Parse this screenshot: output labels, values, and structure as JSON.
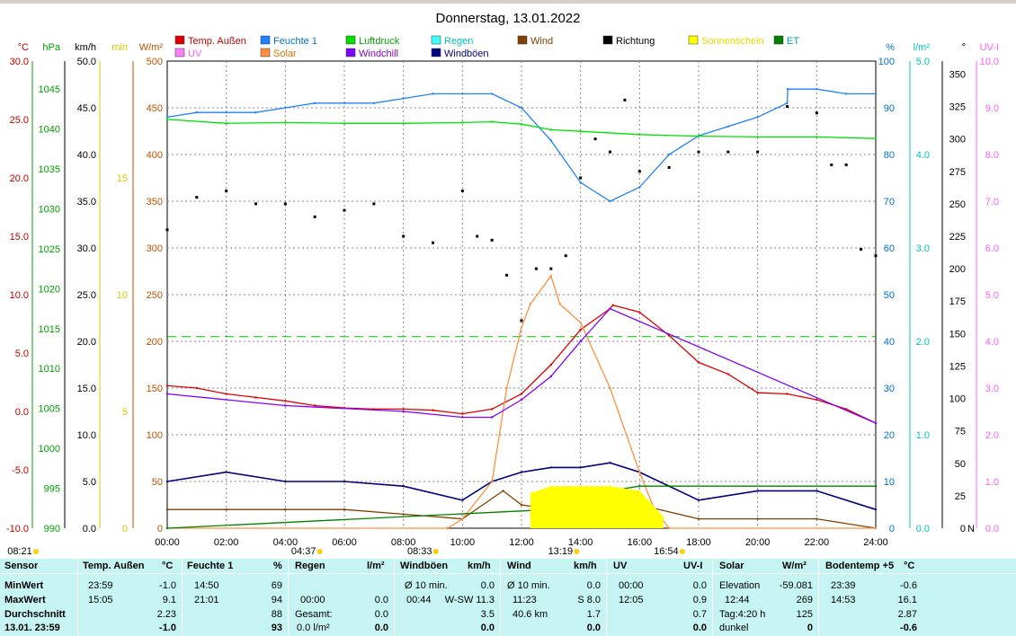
{
  "title": "Donnerstag, 13.01.2022",
  "axes": {
    "temp": {
      "unit": "°C",
      "ticks": [
        "30.0",
        "25.0",
        "20.0",
        "15.0",
        "10.0",
        "5.0",
        "0.0",
        "-5.0",
        "-10.0"
      ],
      "color": "#c00000"
    },
    "hpa": {
      "unit": "hPa",
      "ticks": [
        "1045",
        "1040",
        "1035",
        "1030",
        "1025",
        "1020",
        "1015",
        "1010",
        "1005",
        "1000",
        "995",
        "990"
      ],
      "color": "#00a000"
    },
    "kmh": {
      "unit": "km/h",
      "ticks": [
        "50.0",
        "45.0",
        "40.0",
        "35.0",
        "30.0",
        "25.0",
        "20.0",
        "15.0",
        "10.0",
        "5.0",
        "0.0"
      ],
      "color": "#000000"
    },
    "min": {
      "unit": "min",
      "ticks": [
        "15",
        "10",
        "5",
        "0"
      ],
      "color": "#d8c800"
    },
    "wm2": {
      "unit": "W/m²",
      "ticks": [
        "500",
        "450",
        "400",
        "350",
        "300",
        "250",
        "200",
        "150",
        "100",
        "50",
        "0"
      ],
      "color": "#c05000"
    },
    "pct": {
      "unit": "%",
      "ticks": [
        "100",
        "90",
        "80",
        "70",
        "60",
        "50",
        "40",
        "30",
        "20",
        "10",
        "0"
      ],
      "color": "#0070d0"
    },
    "lm2": {
      "unit": "l/m²",
      "ticks": [
        "5.0",
        "4.0",
        "3.0",
        "2.0",
        "1.0",
        "0.0"
      ],
      "color": "#00c0c0"
    },
    "deg": {
      "unit": "°",
      "ticks": [
        "350",
        "325",
        "300",
        "275",
        "250",
        "225",
        "200",
        "175",
        "150",
        "125",
        "100",
        "75",
        "50",
        "25",
        "0"
      ],
      "color": "#000000"
    },
    "uvi": {
      "unit": "UV-I",
      "ticks": [
        "10.0",
        "9.0",
        "8.0",
        "7.0",
        "6.0",
        "5.0",
        "4.0",
        "3.0",
        "2.0",
        "1.0",
        "0.0"
      ],
      "color": "#ff60ff"
    }
  },
  "north_label": "N",
  "legend": [
    {
      "label": "Temp. Außen",
      "color": "#e00000",
      "textcolor": "#c00000"
    },
    {
      "label": "Feuchte 1",
      "color": "#2080ff",
      "textcolor": "#0070d0"
    },
    {
      "label": "Luftdruck",
      "color": "#00e000",
      "textcolor": "#00a000"
    },
    {
      "label": "Regen",
      "color": "#40ffff",
      "textcolor": "#00c0c0"
    },
    {
      "label": "Wind",
      "color": "#804000",
      "textcolor": "#804000"
    },
    {
      "label": "Richtung",
      "color": "#000000",
      "textcolor": "#000000"
    },
    {
      "label": "Sonnenschein",
      "color": "#ffff00",
      "textcolor": "#e0e000"
    },
    {
      "label": "ET",
      "color": "#008000",
      "textcolor": "#00a0a0"
    },
    {
      "label": "UV",
      "color": "#ff80ff",
      "textcolor": "#ff60ff"
    },
    {
      "label": "Solar",
      "color": "#ff9040",
      "textcolor": "#e07000"
    },
    {
      "label": "Windchill",
      "color": "#8000ff",
      "textcolor": "#8000c0"
    },
    {
      "label": "Windböen",
      "color": "#000080",
      "textcolor": "#000080"
    }
  ],
  "chart_data": {
    "type": "line",
    "title": "Donnerstag, 13.01.2022",
    "x_ticks": [
      "00:00",
      "02:00",
      "04:00",
      "06:00",
      "08:00",
      "10:00",
      "12:00",
      "14:00",
      "16:00",
      "18:00",
      "20:00",
      "22:00",
      "24:00"
    ],
    "xlim_hours": [
      0,
      24
    ],
    "grid": true,
    "sun_markers": [
      {
        "label": "08:21",
        "hour": -1
      },
      {
        "label": "04:37",
        "hour": 4.62
      },
      {
        "label": "08:33",
        "hour": 8.55
      },
      {
        "label": "13:19",
        "hour": 13.32
      },
      {
        "label": "16:54",
        "hour": 16.9
      }
    ],
    "series": [
      {
        "name": "Temp. Außen",
        "unit": "°C",
        "points": [
          [
            0,
            2.2
          ],
          [
            1,
            2.0
          ],
          [
            2,
            1.5
          ],
          [
            3,
            1.2
          ],
          [
            4,
            0.9
          ],
          [
            5,
            0.5
          ],
          [
            6,
            0.3
          ],
          [
            7,
            0.2
          ],
          [
            8,
            0.2
          ],
          [
            9,
            0.1
          ],
          [
            10,
            -0.2
          ],
          [
            11,
            0.2
          ],
          [
            12,
            1.5
          ],
          [
            13,
            4.0
          ],
          [
            14,
            7.0
          ],
          [
            15,
            8.8
          ],
          [
            15.1,
            9.1
          ],
          [
            16,
            8.5
          ],
          [
            17,
            6.5
          ],
          [
            18,
            4.2
          ],
          [
            19,
            3.2
          ],
          [
            20,
            1.6
          ],
          [
            21,
            1.5
          ],
          [
            22,
            1.0
          ],
          [
            23,
            0.2
          ],
          [
            24,
            -1.0
          ]
        ]
      },
      {
        "name": "Feuchte 1",
        "unit": "%",
        "points": [
          [
            0,
            88
          ],
          [
            1,
            89
          ],
          [
            2,
            89
          ],
          [
            3,
            89
          ],
          [
            4,
            90
          ],
          [
            5,
            91
          ],
          [
            6,
            91
          ],
          [
            7,
            91
          ],
          [
            8,
            92
          ],
          [
            9,
            93
          ],
          [
            10,
            93
          ],
          [
            11,
            93
          ],
          [
            12,
            90
          ],
          [
            13,
            83
          ],
          [
            14,
            74
          ],
          [
            15,
            70
          ],
          [
            16,
            73
          ],
          [
            17,
            80
          ],
          [
            18,
            84
          ],
          [
            19,
            86
          ],
          [
            20,
            88
          ],
          [
            21,
            91
          ],
          [
            21.02,
            94
          ],
          [
            22,
            94
          ],
          [
            23,
            93
          ],
          [
            24,
            93
          ]
        ]
      },
      {
        "name": "Luftdruck",
        "unit": "hPa",
        "points": [
          [
            0,
            1041.2
          ],
          [
            2,
            1040.7
          ],
          [
            4,
            1040.8
          ],
          [
            6,
            1040.7
          ],
          [
            8,
            1040.7
          ],
          [
            10,
            1040.8
          ],
          [
            11,
            1040.9
          ],
          [
            12,
            1040.6
          ],
          [
            13,
            1039.9
          ],
          [
            14,
            1039.7
          ],
          [
            16,
            1039.3
          ],
          [
            18,
            1039.1
          ],
          [
            20,
            1039.0
          ],
          [
            22,
            1039.0
          ],
          [
            24,
            1038.8
          ]
        ]
      },
      {
        "name": "Wind",
        "unit": "km/h",
        "points": [
          [
            0,
            2.0
          ],
          [
            2,
            2.0
          ],
          [
            4,
            2.0
          ],
          [
            6,
            2.0
          ],
          [
            8,
            1.5
          ],
          [
            10,
            1.0
          ],
          [
            11.38,
            4.0
          ],
          [
            12,
            2.5
          ],
          [
            13,
            2.0
          ],
          [
            14,
            2.5
          ],
          [
            15,
            3.0
          ],
          [
            16,
            2.5
          ],
          [
            18,
            1.0
          ],
          [
            20,
            1.0
          ],
          [
            22,
            1.0
          ],
          [
            24,
            0.0
          ]
        ]
      },
      {
        "name": "Windböen",
        "unit": "km/h",
        "points": [
          [
            0,
            5.0
          ],
          [
            2,
            6.0
          ],
          [
            4,
            5.0
          ],
          [
            6,
            5.0
          ],
          [
            8,
            4.5
          ],
          [
            10,
            3.0
          ],
          [
            11,
            5.0
          ],
          [
            12,
            6.0
          ],
          [
            13,
            6.5
          ],
          [
            14,
            6.5
          ],
          [
            15,
            7.0
          ],
          [
            16,
            6.0
          ],
          [
            18,
            3.0
          ],
          [
            20,
            4.0
          ],
          [
            22,
            4.0
          ],
          [
            24,
            2.0
          ]
        ]
      },
      {
        "name": "Solar",
        "unit": "W/m²",
        "points": [
          [
            0,
            0
          ],
          [
            9.5,
            0
          ],
          [
            10,
            10
          ],
          [
            11,
            50
          ],
          [
            11.5,
            150
          ],
          [
            12,
            215
          ],
          [
            12.3,
            240
          ],
          [
            13,
            270
          ],
          [
            13.3,
            240
          ],
          [
            14,
            220
          ],
          [
            15,
            150
          ],
          [
            16,
            60
          ],
          [
            16.5,
            20
          ],
          [
            17,
            0
          ],
          [
            24,
            0
          ]
        ]
      },
      {
        "name": "Windchill",
        "unit": "°C",
        "points": [
          [
            0,
            1.5
          ],
          [
            4,
            0.5
          ],
          [
            8,
            0.0
          ],
          [
            10,
            -0.5
          ],
          [
            11,
            -0.5
          ],
          [
            12,
            1.0
          ],
          [
            13,
            3.0
          ],
          [
            14,
            6.0
          ],
          [
            15,
            8.8
          ],
          [
            24,
            -1.0
          ]
        ]
      },
      {
        "name": "ET",
        "unit": "l/m²",
        "points": [
          [
            0,
            0
          ],
          [
            13,
            0.2
          ],
          [
            14,
            0.3
          ],
          [
            15,
            0.4
          ],
          [
            16,
            0.45
          ],
          [
            17,
            0.45
          ],
          [
            24,
            0.45
          ]
        ]
      },
      {
        "name": "Richtung",
        "unit": "°",
        "points": [
          [
            0,
            230
          ],
          [
            1,
            255
          ],
          [
            2,
            260
          ],
          [
            3,
            250
          ],
          [
            4,
            250
          ],
          [
            5,
            240
          ],
          [
            6,
            245
          ],
          [
            7,
            250
          ],
          [
            8,
            225
          ],
          [
            9,
            220
          ],
          [
            10,
            260
          ],
          [
            10.5,
            225
          ],
          [
            11,
            222
          ],
          [
            11.5,
            195
          ],
          [
            12,
            160
          ],
          [
            12.5,
            200
          ],
          [
            13,
            200
          ],
          [
            13.5,
            210
          ],
          [
            14,
            270
          ],
          [
            14.5,
            300
          ],
          [
            15,
            290
          ],
          [
            15.5,
            330
          ],
          [
            16,
            275
          ],
          [
            17,
            278
          ],
          [
            18,
            290
          ],
          [
            19,
            290
          ],
          [
            20,
            290
          ],
          [
            21,
            325
          ],
          [
            22,
            320
          ],
          [
            22.5,
            280
          ],
          [
            23,
            280
          ],
          [
            23.5,
            215
          ],
          [
            24,
            210
          ]
        ]
      },
      {
        "name": "Sonnenschein",
        "unit": "min",
        "points": [
          [
            12.3,
            1.5
          ],
          [
            13,
            1.8
          ],
          [
            14,
            1.8
          ],
          [
            15,
            1.8
          ],
          [
            16,
            1.6
          ],
          [
            16.8,
            0.5
          ]
        ]
      }
    ],
    "reference_lines": [
      {
        "name": "UV-I 4.0",
        "value": 4.1,
        "axis": "UV-I",
        "style": "dashed",
        "color": "#00c000"
      }
    ]
  },
  "table": {
    "headers": [
      {
        "name": "Sensor"
      },
      {
        "name": "Temp. Außen",
        "unit": "°C"
      },
      {
        "name": "Feuchte 1",
        "unit": "%"
      },
      {
        "name": "Regen",
        "unit": "l/m²"
      },
      {
        "name": "Windböen",
        "unit": "km/h"
      },
      {
        "name": "Wind",
        "unit": "km/h"
      },
      {
        "name": "UV",
        "unit": "UV-I"
      },
      {
        "name": "Solar",
        "unit": "W/m²"
      },
      {
        "name": "Bodentemp +5",
        "unit": "°C"
      }
    ],
    "row_labels": [
      "MinWert",
      "MaxWert",
      "Durchschnitt",
      "13.01. 23:59"
    ],
    "temp": {
      "min_t": "23:59",
      "min_v": "-1.0",
      "max_t": "15:05",
      "max_v": "9.1",
      "avg": "2.23",
      "last": "-1.0"
    },
    "feuchte": {
      "min_t": "14:50",
      "min_v": "69",
      "max_t": "21:01",
      "max_v": "94",
      "avg": "88",
      "last": "93"
    },
    "regen": {
      "max_t": "00:00",
      "max_v": "0.0",
      "ges_l": "Gesamt:",
      "ges_v": "0.0",
      "last_l": "0.0 l/m²",
      "last_v": "0.0"
    },
    "boeen": {
      "r1_l": "Ø 10 min.",
      "r1_v": "0.0",
      "r2_t": "00:44",
      "r2_d": "W-SW 11.3",
      "avg": "3.5",
      "last": "0.0"
    },
    "wind": {
      "r1_l": "Ø 10 min.",
      "r1_v": "0.0",
      "r2_t": "11:23",
      "r2_v": "S 8.0",
      "r3_l": "40.6 km",
      "r3_v": "1.7",
      "last": "0.0"
    },
    "uv": {
      "r1_t": "00:00",
      "r1_v": "0.0",
      "r2_t": "12:05",
      "r2_v": "0.9",
      "avg": "0.7",
      "last": "0.0"
    },
    "solar": {
      "r1_l": "Elevation",
      "r1_v": "-59.081",
      "r2_t": "12:44",
      "r2_v": "269",
      "r3_l": "Tag:4:20 h",
      "r3_v": "125",
      "r4_l": "dunkel",
      "r4_v": "0"
    },
    "boden": {
      "min_t": "23:39",
      "min_v": "-0.6",
      "max_t": "14:53",
      "max_v": "16.1",
      "avg": "2.87",
      "last": "-0.6"
    }
  }
}
